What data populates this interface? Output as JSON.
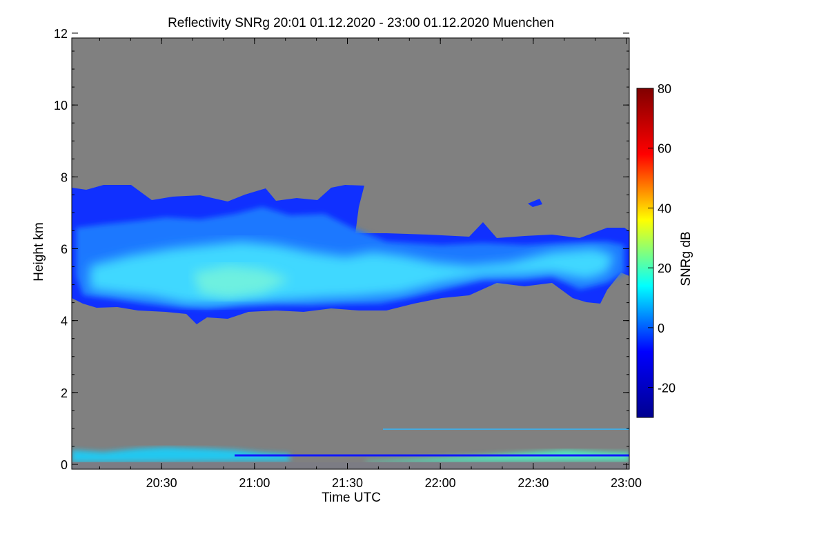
{
  "chart_data": {
    "type": "heatmap",
    "title": "Reflectivity SNRg   20:01 01.12.2020 - 23:00 01.12.2020 Muenchen",
    "xlabel": "Time UTC",
    "ylabel": "Height km",
    "xlim": [
      "20:01",
      "23:01"
    ],
    "ylim": [
      0,
      12
    ],
    "x_ticks": [
      "20:30",
      "21:00",
      "21:30",
      "22:00",
      "22:30",
      "23:00"
    ],
    "y_ticks": [
      0,
      2,
      4,
      6,
      8,
      10,
      12
    ],
    "colorbar": {
      "label": "SNRg dB",
      "range": [
        -30,
        80
      ],
      "ticks": [
        -20,
        0,
        20,
        40,
        60,
        80
      ],
      "colormap": [
        "#00008f",
        "#0000ff",
        "#00ffff",
        "#ffff00",
        "#ff0000",
        "#800000"
      ]
    },
    "colors": {
      "background": "#808080",
      "frame": "#000000"
    },
    "features": [
      {
        "name": "precipitating cloud layer",
        "time_range": [
          "20:01",
          "23:01"
        ],
        "base_km": 4.6,
        "top_km": 7.6,
        "peak_snr_db": 10
      },
      {
        "name": "boundary-layer echo (early)",
        "time_range": [
          "20:01",
          "21:30"
        ],
        "base_km": 0.0,
        "top_km": 0.5,
        "peak_snr_db": 5
      },
      {
        "name": "boundary-layer echo (late)",
        "time_range": [
          "21:33",
          "23:01"
        ],
        "base_km": 0.0,
        "top_km": 0.35,
        "peak_snr_db": 15
      },
      {
        "name": "thin line at ~1 km",
        "time_range": [
          "21:40",
          "23:01"
        ],
        "base_km": 1.0,
        "top_km": 1.05,
        "peak_snr_db": 5
      }
    ]
  }
}
